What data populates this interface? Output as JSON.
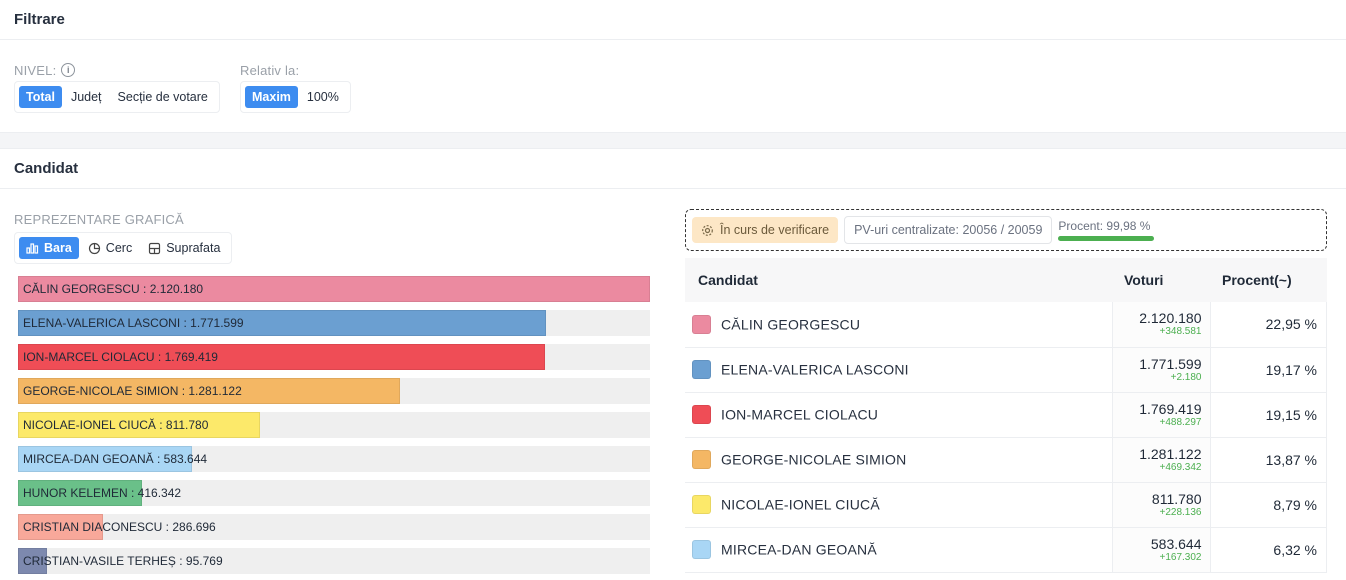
{
  "filter": {
    "title": "Filtrare",
    "nivel_label": "NIVEL:",
    "nivel_options": [
      "Total",
      "Județ",
      "Secție de votare"
    ],
    "relativ_label": "Relativ la:",
    "relativ_options": [
      "Maxim",
      "100%"
    ]
  },
  "candidate_section": {
    "title": "Candidat",
    "chart_label": "REPREZENTARE GRAFICĂ",
    "chart_options": [
      "Bara",
      "Cerc",
      "Suprafata"
    ]
  },
  "status": {
    "verify": "În curs de verificare",
    "pv": "PV-uri centralizate: 20056 / 20059",
    "percent_label": "Procent: 99,98 %",
    "percent_value": 99.98
  },
  "table": {
    "headers": [
      "Candidat",
      "Voturi",
      "Procent(~)"
    ],
    "rows": [
      {
        "name": "CĂLIN GEORGESCU",
        "votes": "2.120.180",
        "delta": "+348.581",
        "pct": "22,95 %",
        "color": "#eb8aa0"
      },
      {
        "name": "ELENA-VALERICA LASCONI",
        "votes": "1.771.599",
        "delta": "+2.180",
        "pct": "19,17 %",
        "color": "#6b9fd1"
      },
      {
        "name": "ION-MARCEL CIOLACU",
        "votes": "1.769.419",
        "delta": "+488.297",
        "pct": "19,15 %",
        "color": "#ef4d56"
      },
      {
        "name": "GEORGE-NICOLAE SIMION",
        "votes": "1.281.122",
        "delta": "+469.342",
        "pct": "13,87 %",
        "color": "#f4b764"
      },
      {
        "name": "NICOLAE-IONEL CIUCĂ",
        "votes": "811.780",
        "delta": "+228.136",
        "pct": "8,79 %",
        "color": "#fce96a"
      },
      {
        "name": "MIRCEA-DAN GEOANĂ",
        "votes": "583.644",
        "delta": "+167.302",
        "pct": "6,32 %",
        "color": "#a9d6f5"
      }
    ]
  },
  "chart_data": {
    "type": "bar",
    "categories": [
      "CĂLIN GEORGESCU",
      "ELENA-VALERICA LASCONI",
      "ION-MARCEL CIOLACU",
      "GEORGE-NICOLAE SIMION",
      "NICOLAE-IONEL CIUCĂ",
      "MIRCEA-DAN GEOANĂ",
      "HUNOR KELEMEN",
      "CRISTIAN DIACONESCU",
      "CRISTIAN-VASILE TERHEȘ"
    ],
    "values": [
      2120180,
      1771599,
      1769419,
      1281122,
      811780,
      583644,
      416342,
      286696,
      95769
    ],
    "labels": [
      "CĂLIN GEORGESCU : 2.120.180",
      "ELENA-VALERICA LASCONI : 1.771.599",
      "ION-MARCEL CIOLACU : 1.769.419",
      "GEORGE-NICOLAE SIMION : 1.281.122",
      "NICOLAE-IONEL CIUCĂ : 811.780",
      "MIRCEA-DAN GEOANĂ : 583.644",
      "HUNOR KELEMEN : 416.342",
      "CRISTIAN DIACONESCU : 286.696",
      "CRISTIAN-VASILE TERHEȘ : 95.769"
    ],
    "colors": [
      "#eb8aa0",
      "#6b9fd1",
      "#ef4d56",
      "#f4b764",
      "#fce96a",
      "#a9d6f5",
      "#6ac089",
      "#f8a89a",
      "#7d89ae"
    ],
    "xlim": [
      0,
      2120180
    ]
  }
}
